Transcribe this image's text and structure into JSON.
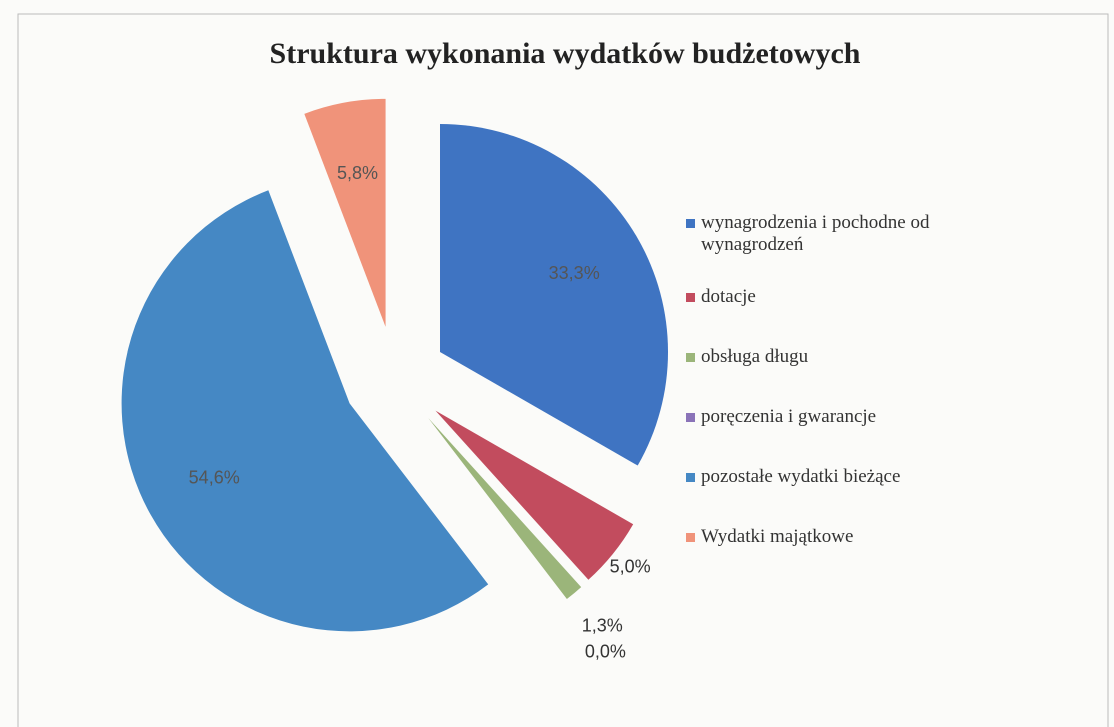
{
  "chart_data": {
    "type": "pie",
    "title": "Struktura wykonania wydatków budżetowych",
    "categories": [
      "wynagrodzenia i pochodne od wynagrodzeń",
      "dotacje",
      "obsługa długu",
      "poręczenia i gwarancje",
      "pozostałe wydatki bieżące",
      "Wydatki majątkowe"
    ],
    "values": [
      33.3,
      5.0,
      1.3,
      0.0,
      54.6,
      5.8
    ],
    "value_labels": [
      "33,3%",
      "5,0%",
      "1,3%",
      "0,0%",
      "54,6%",
      "5,8%"
    ],
    "colors": [
      "#3f74c2",
      "#c24c5e",
      "#9bb57a",
      "#8a73b8",
      "#4588c4",
      "#f0937a"
    ],
    "exploded": true,
    "legend": "right"
  }
}
